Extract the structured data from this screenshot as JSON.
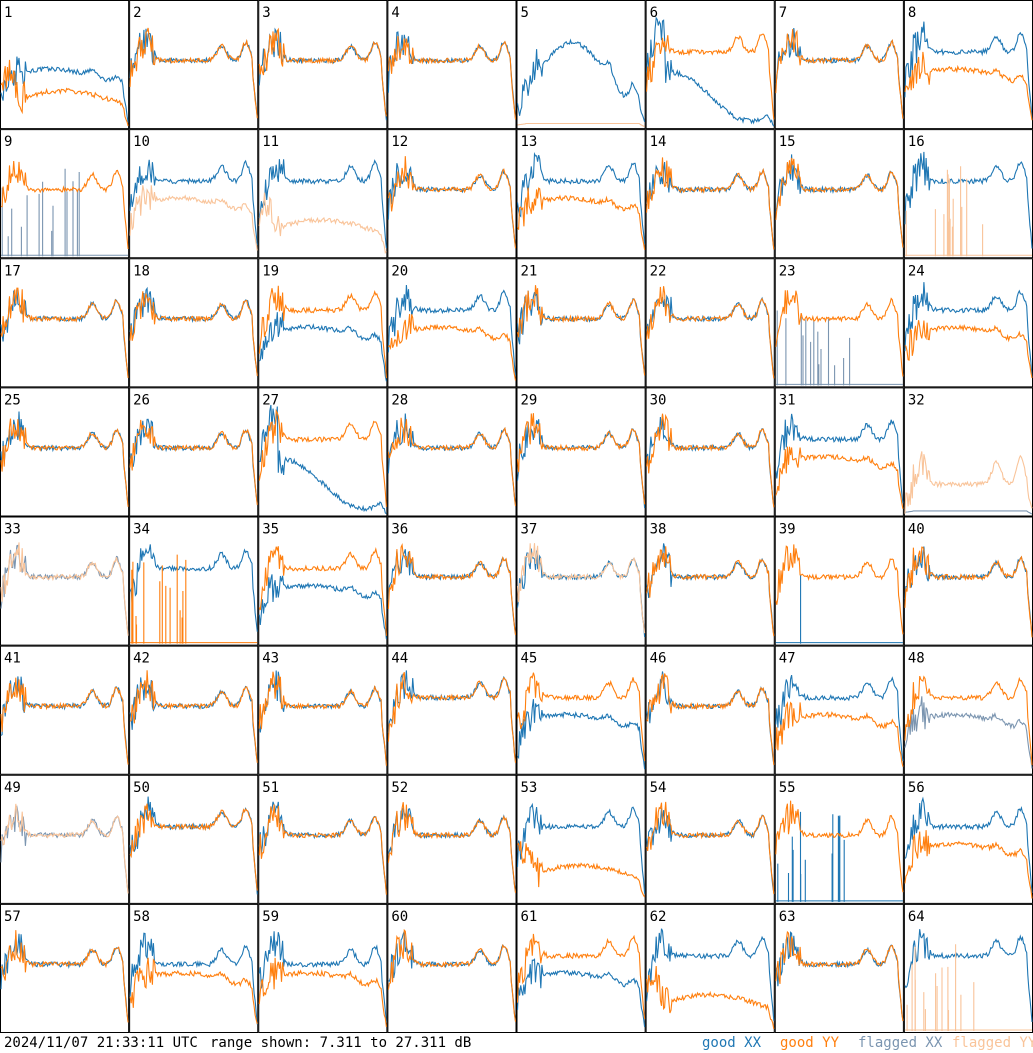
{
  "footer": {
    "timestamp": "2024/11/07 21:33:11 UTC",
    "range_text": "range shown: 7.311 to 27.311 dB"
  },
  "colors": {
    "good_xx": "#1f77b4",
    "good_yy": "#ff7f0e",
    "flagged_xx": "#7b95b0",
    "flagged_yy": "#f9c49a"
  },
  "chart_data": {
    "type": "line",
    "title": "",
    "grid": {
      "rows": 8,
      "cols": 8
    },
    "range_db": [
      7.311,
      27.311
    ],
    "legend_position": "bottom-right",
    "legend": [
      {
        "key": "good_xx",
        "label": "good XX"
      },
      {
        "key": "good_yy",
        "label": "good YY"
      },
      {
        "key": "flagged_xx",
        "label": "flagged XX"
      },
      {
        "key": "flagged_yy",
        "label": "flagged YY"
      }
    ],
    "tiles": [
      {
        "label": "1",
        "xx": {
          "s": "good",
          "p": "mid"
        },
        "yy": {
          "s": "good",
          "p": "sag"
        }
      },
      {
        "label": "2",
        "xx": {
          "s": "good",
          "p": "std"
        },
        "yy": {
          "s": "good",
          "p": "std"
        }
      },
      {
        "label": "3",
        "xx": {
          "s": "good",
          "p": "std"
        },
        "yy": {
          "s": "good",
          "p": "std"
        }
      },
      {
        "label": "4",
        "xx": {
          "s": "good",
          "p": "std"
        },
        "yy": {
          "s": "good",
          "p": "std"
        }
      },
      {
        "label": "5",
        "xx": {
          "s": "good",
          "p": "bump"
        },
        "yy": {
          "s": "flagged",
          "p": "low"
        }
      },
      {
        "label": "6",
        "xx": {
          "s": "good",
          "p": "deep"
        },
        "yy": {
          "s": "good",
          "p": "high"
        }
      },
      {
        "label": "7",
        "xx": {
          "s": "good",
          "p": "std"
        },
        "yy": {
          "s": "good",
          "p": "std"
        }
      },
      {
        "label": "8",
        "xx": {
          "s": "good",
          "p": "high"
        },
        "yy": {
          "s": "good",
          "p": "mid"
        }
      },
      {
        "label": "9",
        "xx": {
          "s": "flagged",
          "p": "spike"
        },
        "yy": {
          "s": "good",
          "p": "std"
        }
      },
      {
        "label": "10",
        "xx": {
          "s": "good",
          "p": "high"
        },
        "yy": {
          "s": "flagged",
          "p": "mid"
        }
      },
      {
        "label": "11",
        "xx": {
          "s": "good",
          "p": "high"
        },
        "yy": {
          "s": "flagged",
          "p": "sag"
        }
      },
      {
        "label": "12",
        "xx": {
          "s": "good",
          "p": "std"
        },
        "yy": {
          "s": "good",
          "p": "std"
        }
      },
      {
        "label": "13",
        "xx": {
          "s": "good",
          "p": "high"
        },
        "yy": {
          "s": "good",
          "p": "mid"
        }
      },
      {
        "label": "14",
        "xx": {
          "s": "good",
          "p": "std"
        },
        "yy": {
          "s": "good",
          "p": "std"
        }
      },
      {
        "label": "15",
        "xx": {
          "s": "good",
          "p": "std"
        },
        "yy": {
          "s": "good",
          "p": "std"
        }
      },
      {
        "label": "16",
        "xx": {
          "s": "good",
          "p": "high"
        },
        "yy": {
          "s": "flagged",
          "p": "spike"
        }
      },
      {
        "label": "17",
        "xx": {
          "s": "good",
          "p": "std"
        },
        "yy": {
          "s": "good",
          "p": "std"
        }
      },
      {
        "label": "18",
        "xx": {
          "s": "good",
          "p": "std"
        },
        "yy": {
          "s": "good",
          "p": "std"
        }
      },
      {
        "label": "19",
        "xx": {
          "s": "good",
          "p": "mid"
        },
        "yy": {
          "s": "good",
          "p": "high"
        }
      },
      {
        "label": "20",
        "xx": {
          "s": "good",
          "p": "high"
        },
        "yy": {
          "s": "good",
          "p": "mid"
        }
      },
      {
        "label": "21",
        "xx": {
          "s": "good",
          "p": "std"
        },
        "yy": {
          "s": "good",
          "p": "std"
        }
      },
      {
        "label": "22",
        "xx": {
          "s": "good",
          "p": "std"
        },
        "yy": {
          "s": "good",
          "p": "std"
        }
      },
      {
        "label": "23",
        "xx": {
          "s": "flagged",
          "p": "spike"
        },
        "yy": {
          "s": "good",
          "p": "std"
        }
      },
      {
        "label": "24",
        "xx": {
          "s": "good",
          "p": "high"
        },
        "yy": {
          "s": "good",
          "p": "mid"
        }
      },
      {
        "label": "25",
        "xx": {
          "s": "good",
          "p": "std"
        },
        "yy": {
          "s": "good",
          "p": "std"
        }
      },
      {
        "label": "26",
        "xx": {
          "s": "good",
          "p": "std"
        },
        "yy": {
          "s": "good",
          "p": "std"
        }
      },
      {
        "label": "27",
        "xx": {
          "s": "good",
          "p": "deep"
        },
        "yy": {
          "s": "good",
          "p": "high"
        }
      },
      {
        "label": "28",
        "xx": {
          "s": "good",
          "p": "std"
        },
        "yy": {
          "s": "good",
          "p": "std"
        }
      },
      {
        "label": "29",
        "xx": {
          "s": "good",
          "p": "std"
        },
        "yy": {
          "s": "good",
          "p": "std"
        }
      },
      {
        "label": "30",
        "xx": {
          "s": "good",
          "p": "std"
        },
        "yy": {
          "s": "good",
          "p": "std"
        }
      },
      {
        "label": "31",
        "xx": {
          "s": "good",
          "p": "high"
        },
        "yy": {
          "s": "good",
          "p": "mid"
        }
      },
      {
        "label": "32",
        "xx": {
          "s": "flagged",
          "p": "low"
        },
        "yy": {
          "s": "flagged",
          "p": "spiky"
        }
      },
      {
        "label": "33",
        "xx": {
          "s": "flagged",
          "p": "std"
        },
        "yy": {
          "s": "flagged",
          "p": "std"
        }
      },
      {
        "label": "34",
        "xx": {
          "s": "good",
          "p": "high"
        },
        "yy": {
          "s": "good",
          "p": "spike"
        }
      },
      {
        "label": "35",
        "xx": {
          "s": "good",
          "p": "mid"
        },
        "yy": {
          "s": "good",
          "p": "high"
        }
      },
      {
        "label": "36",
        "xx": {
          "s": "good",
          "p": "std"
        },
        "yy": {
          "s": "good",
          "p": "std"
        }
      },
      {
        "label": "37",
        "xx": {
          "s": "good",
          "p": "std"
        },
        "yy": {
          "s": "flagged",
          "p": "std"
        }
      },
      {
        "label": "38",
        "xx": {
          "s": "good",
          "p": "std"
        },
        "yy": {
          "s": "good",
          "p": "std"
        }
      },
      {
        "label": "39",
        "xx": {
          "s": "good",
          "p": "spike1"
        },
        "yy": {
          "s": "good",
          "p": "std"
        }
      },
      {
        "label": "40",
        "xx": {
          "s": "good",
          "p": "std"
        },
        "yy": {
          "s": "good",
          "p": "std"
        }
      },
      {
        "label": "41",
        "xx": {
          "s": "good",
          "p": "std"
        },
        "yy": {
          "s": "good",
          "p": "std"
        }
      },
      {
        "label": "42",
        "xx": {
          "s": "good",
          "p": "std"
        },
        "yy": {
          "s": "good",
          "p": "std"
        }
      },
      {
        "label": "43",
        "xx": {
          "s": "good",
          "p": "std"
        },
        "yy": {
          "s": "good",
          "p": "std"
        }
      },
      {
        "label": "44",
        "xx": {
          "s": "good",
          "p": "high"
        },
        "yy": {
          "s": "good",
          "p": "high"
        }
      },
      {
        "label": "45",
        "xx": {
          "s": "good",
          "p": "mid"
        },
        "yy": {
          "s": "good",
          "p": "high"
        }
      },
      {
        "label": "46",
        "xx": {
          "s": "good",
          "p": "std"
        },
        "yy": {
          "s": "good",
          "p": "std"
        }
      },
      {
        "label": "47",
        "xx": {
          "s": "good",
          "p": "high"
        },
        "yy": {
          "s": "good",
          "p": "mid"
        }
      },
      {
        "label": "48",
        "xx": {
          "s": "flagged",
          "p": "mid"
        },
        "yy": {
          "s": "good",
          "p": "high"
        }
      },
      {
        "label": "49",
        "xx": {
          "s": "flagged",
          "p": "std"
        },
        "yy": {
          "s": "flagged",
          "p": "std"
        }
      },
      {
        "label": "50",
        "xx": {
          "s": "good",
          "p": "high"
        },
        "yy": {
          "s": "good",
          "p": "high"
        }
      },
      {
        "label": "51",
        "xx": {
          "s": "good",
          "p": "std"
        },
        "yy": {
          "s": "good",
          "p": "std"
        }
      },
      {
        "label": "52",
        "xx": {
          "s": "good",
          "p": "std"
        },
        "yy": {
          "s": "good",
          "p": "std"
        }
      },
      {
        "label": "53",
        "xx": {
          "s": "good",
          "p": "high"
        },
        "yy": {
          "s": "good",
          "p": "sag"
        }
      },
      {
        "label": "54",
        "xx": {
          "s": "good",
          "p": "std"
        },
        "yy": {
          "s": "good",
          "p": "std"
        }
      },
      {
        "label": "55",
        "xx": {
          "s": "good",
          "p": "spike"
        },
        "yy": {
          "s": "good",
          "p": "std"
        }
      },
      {
        "label": "56",
        "xx": {
          "s": "good",
          "p": "high"
        },
        "yy": {
          "s": "good",
          "p": "mid"
        }
      },
      {
        "label": "57",
        "xx": {
          "s": "good",
          "p": "std"
        },
        "yy": {
          "s": "good",
          "p": "std"
        }
      },
      {
        "label": "58",
        "xx": {
          "s": "good",
          "p": "std"
        },
        "yy": {
          "s": "good",
          "p": "mid"
        }
      },
      {
        "label": "59",
        "xx": {
          "s": "good",
          "p": "std"
        },
        "yy": {
          "s": "good",
          "p": "mid"
        }
      },
      {
        "label": "60",
        "xx": {
          "s": "good",
          "p": "std"
        },
        "yy": {
          "s": "good",
          "p": "std"
        }
      },
      {
        "label": "61",
        "xx": {
          "s": "good",
          "p": "mid"
        },
        "yy": {
          "s": "good",
          "p": "high"
        }
      },
      {
        "label": "62",
        "xx": {
          "s": "good",
          "p": "high"
        },
        "yy": {
          "s": "good",
          "p": "sag"
        }
      },
      {
        "label": "63",
        "xx": {
          "s": "good",
          "p": "std"
        },
        "yy": {
          "s": "good",
          "p": "std"
        }
      },
      {
        "label": "64",
        "xx": {
          "s": "good",
          "p": "high"
        },
        "yy": {
          "s": "flagged",
          "p": "spike"
        }
      }
    ]
  }
}
